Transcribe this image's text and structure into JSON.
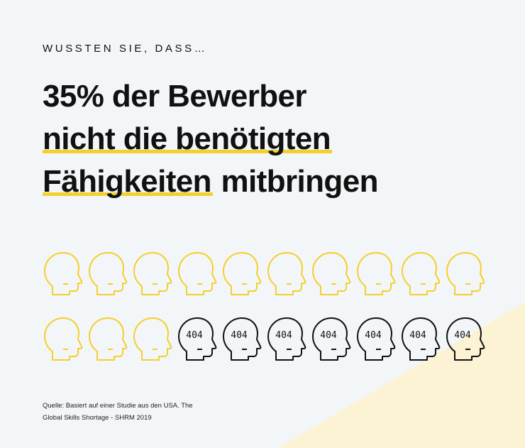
{
  "eyebrow": "WUSSTEN SIE, DASS…",
  "headline": {
    "line1": "35% der Bewerber",
    "line2": "nicht die benötigten",
    "line3_highlight": "Fähigkeiten",
    "line3_rest": " mitbringen"
  },
  "heads": {
    "total": 20,
    "ok_count": 13,
    "missing_count": 7,
    "missing_label": "404",
    "ok_color": "#f5cf2b",
    "missing_color": "#111111",
    "ok_icon": "head-outline-icon",
    "missing_icon": "head-404-icon"
  },
  "source": {
    "line1": "Quelle: Basiert auf einer Studie aus den USA. The",
    "line2": "Global Skills Shortage - SHRM 2019"
  },
  "colors": {
    "background": "#f3f6f8",
    "accent": "#f5cf2b",
    "triangle": "#fbf3d4"
  }
}
